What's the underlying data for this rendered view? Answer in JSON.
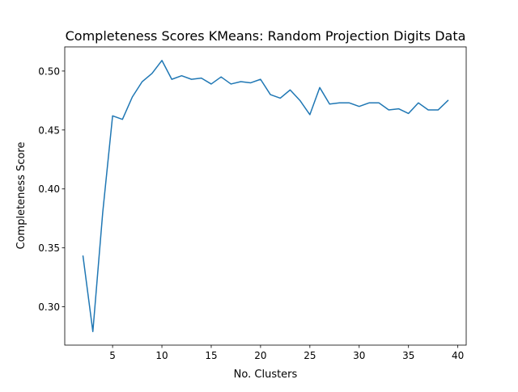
{
  "chart_data": {
    "type": "line",
    "title": "Completeness Scores KMeans: Random Projection Digits Data",
    "xlabel": "No. Clusters",
    "ylabel": "Completeness Score",
    "xlim": [
      0.15,
      40.85
    ],
    "ylim": [
      0.2675,
      0.5205
    ],
    "xticks": [
      5,
      10,
      15,
      20,
      25,
      30,
      35,
      40
    ],
    "xtick_labels": [
      "5",
      "10",
      "15",
      "20",
      "25",
      "30",
      "35",
      "40"
    ],
    "yticks": [
      0.3,
      0.35,
      0.4,
      0.45,
      0.5
    ],
    "ytick_labels": [
      "0.30",
      "0.35",
      "0.40",
      "0.45",
      "0.50"
    ],
    "grid": false,
    "series": [
      {
        "color": "#1f77b4",
        "x": [
          2,
          3,
          4,
          5,
          6,
          7,
          8,
          9,
          10,
          11,
          12,
          13,
          14,
          15,
          16,
          17,
          18,
          19,
          20,
          21,
          22,
          23,
          24,
          25,
          26,
          27,
          28,
          29,
          30,
          31,
          32,
          33,
          34,
          35,
          36,
          37,
          38,
          39
        ],
        "values": [
          0.343,
          0.279,
          0.38,
          0.462,
          0.459,
          0.478,
          0.491,
          0.498,
          0.509,
          0.493,
          0.496,
          0.493,
          0.494,
          0.489,
          0.495,
          0.489,
          0.491,
          0.49,
          0.493,
          0.48,
          0.477,
          0.484,
          0.475,
          0.463,
          0.486,
          0.472,
          0.473,
          0.473,
          0.47,
          0.473,
          0.473,
          0.467,
          0.468,
          0.464,
          0.473,
          0.467,
          0.467,
          0.475
        ]
      }
    ]
  }
}
